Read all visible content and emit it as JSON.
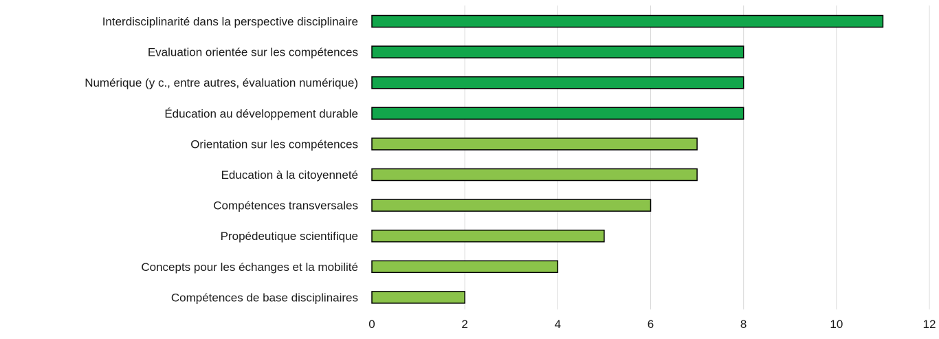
{
  "chart_data": {
    "type": "bar",
    "orientation": "horizontal",
    "categories": [
      "Interdisciplinarité dans la perspective disciplinaire",
      "Evaluation orientée sur les compétences",
      "Numérique (y c., entre autres, évaluation numérique)",
      "Éducation au développement durable",
      "Orientation sur les compétences",
      "Education à la citoyenneté",
      "Compétences transversales",
      "Propédeutique scientifique",
      "Concepts pour les échanges et la mobilité",
      "Compétences de base disciplinaires"
    ],
    "values": [
      11,
      8,
      8,
      8,
      7,
      7,
      6,
      5,
      4,
      2
    ],
    "bar_colors": [
      "#12a64b",
      "#12a64b",
      "#12a64b",
      "#12a64b",
      "#8bc34a",
      "#8bc34a",
      "#8bc34a",
      "#8bc34a",
      "#8bc34a",
      "#8bc34a"
    ],
    "bar_outline_color": "#000000",
    "gridline_color": "#d9d9d9",
    "x_ticks": [
      "0",
      "2",
      "4",
      "6",
      "8",
      "10",
      "12"
    ],
    "xlim": [
      0,
      12
    ],
    "grid": "vertical",
    "legend": "none",
    "title": "",
    "xlabel": "",
    "ylabel": ""
  }
}
